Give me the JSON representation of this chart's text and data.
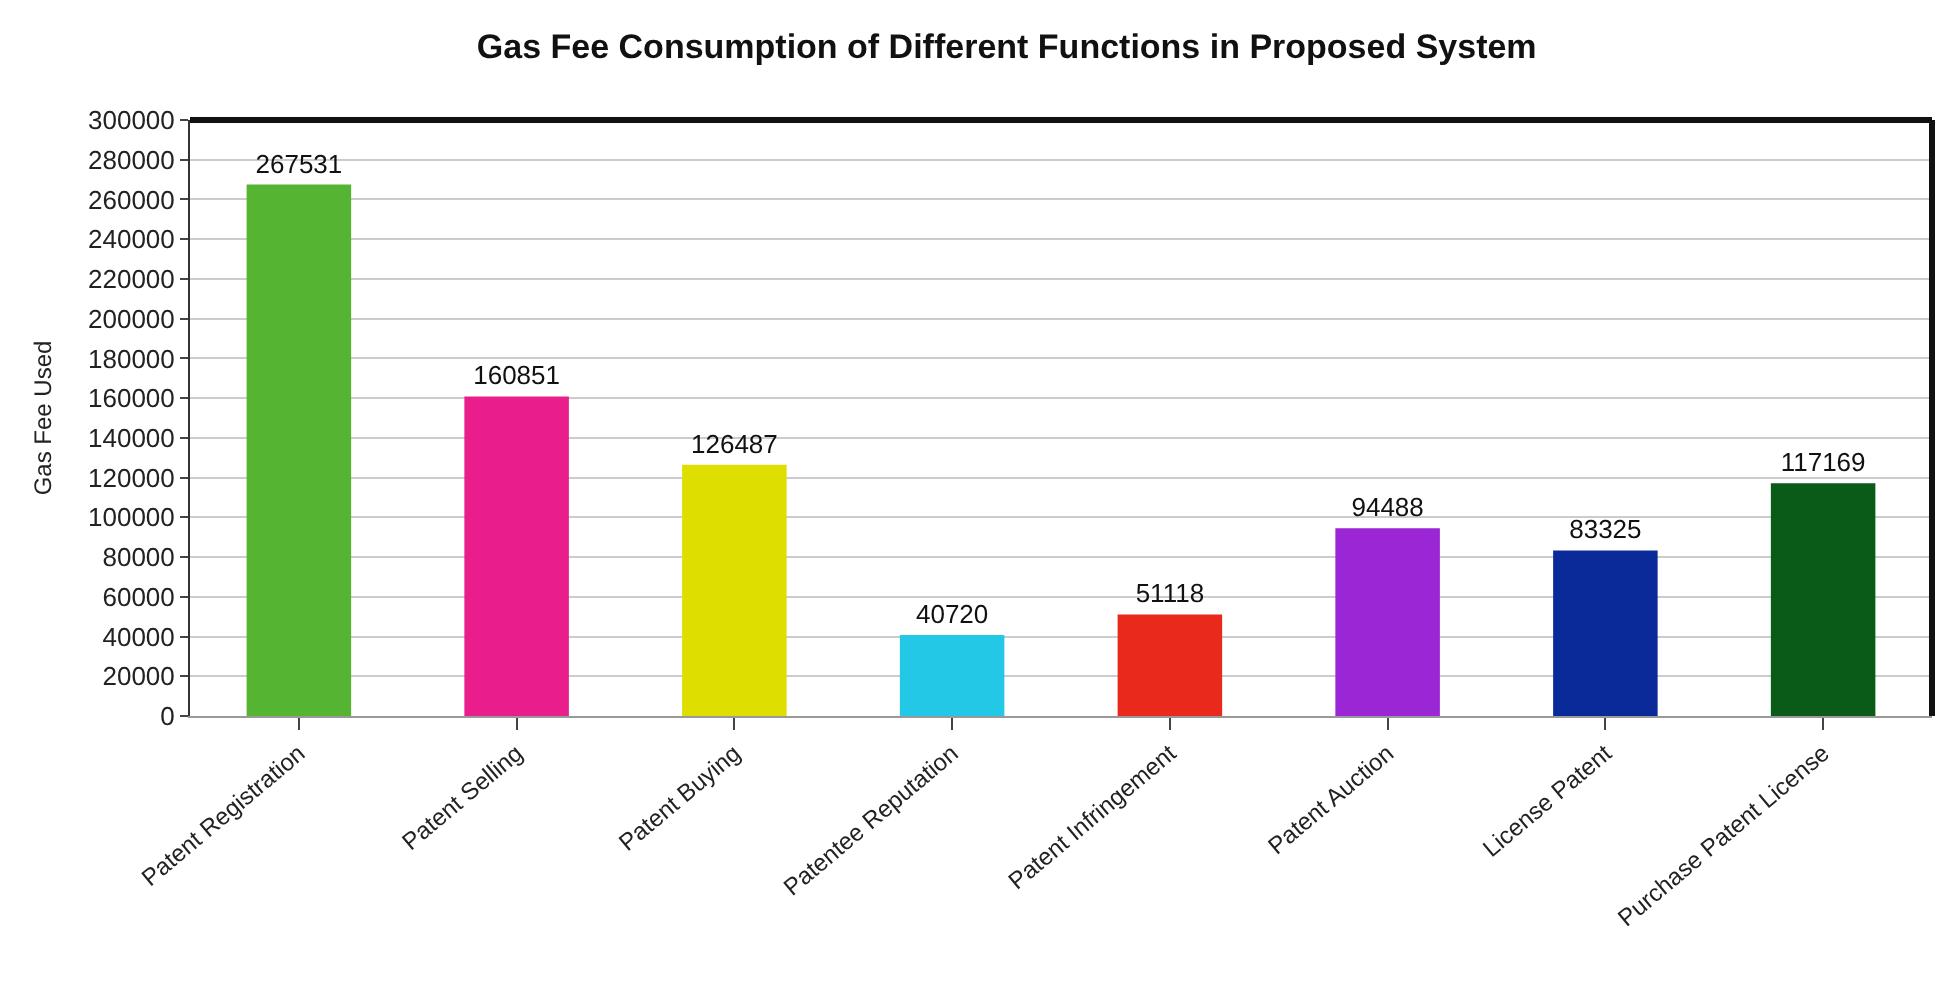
{
  "chart_data": {
    "type": "bar",
    "title": "Gas Fee Consumption of Different Functions in Proposed System",
    "ylabel": "Gas Fee Used",
    "categories": [
      "Patent Registration",
      "Patent Selling",
      "Patent Buying",
      "Patentee Reputation",
      "Patent Infringement",
      "Patent Auction",
      "License Patent",
      "Purchase Patent License"
    ],
    "values": [
      267531,
      160851,
      126487,
      40720,
      51118,
      94488,
      83325,
      117169
    ],
    "colors": [
      "#55b432",
      "#e91e8c",
      "#dede00",
      "#22c8e6",
      "#e8291c",
      "#9b26d6",
      "#0a2a9a",
      "#0a5a18"
    ],
    "ylim": [
      0,
      300000
    ],
    "yticks": [
      0,
      20000,
      40000,
      60000,
      80000,
      100000,
      120000,
      140000,
      160000,
      180000,
      200000,
      220000,
      240000,
      260000,
      280000,
      300000
    ],
    "grid": "y",
    "data_labels": true
  }
}
